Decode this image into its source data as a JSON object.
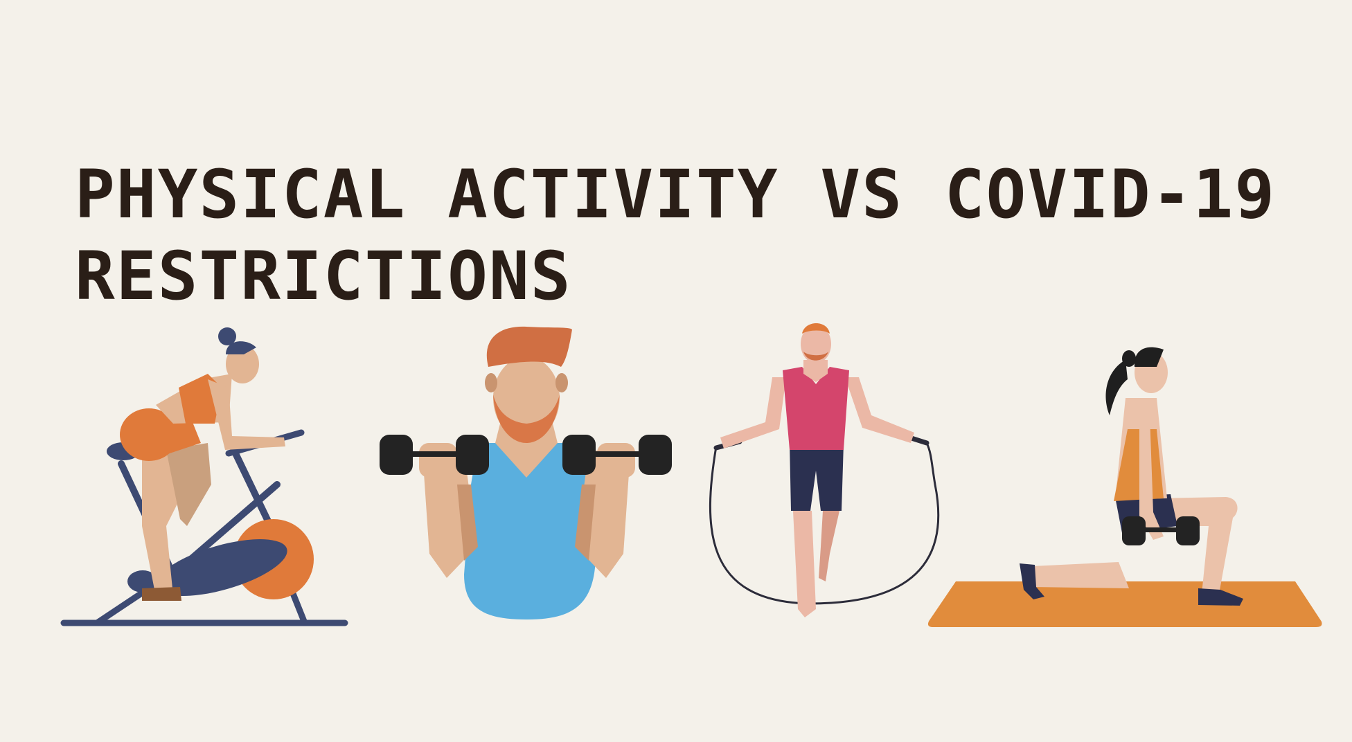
{
  "title": {
    "line1": "PHYSICAL ACTIVITY VS COVID-19",
    "line2": "RESTRICTIONS"
  },
  "illustrations": [
    {
      "name": "woman-on-exercise-bike",
      "icon": "stationary-bike-icon"
    },
    {
      "name": "man-lifting-dumbbells",
      "icon": "dumbbell-icon"
    },
    {
      "name": "man-jumping-rope",
      "icon": "jump-rope-icon"
    },
    {
      "name": "woman-lunging-with-dumbbell",
      "icon": "yoga-mat-icon"
    }
  ],
  "colors": {
    "background": "#f4f1ea",
    "title": "#2a1e17",
    "navy": "#3d4a72",
    "orange": "#e07a3a",
    "skin": "#e2b593",
    "shirt_blue": "#5aafde",
    "shirt_pink": "#d4456c",
    "mat": "#e18c3c",
    "weights": "#232323"
  }
}
